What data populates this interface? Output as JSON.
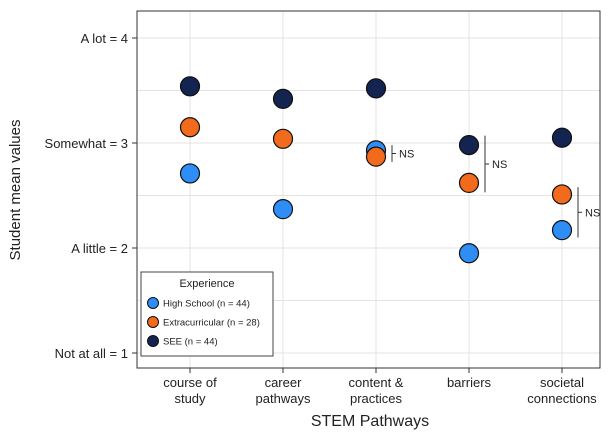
{
  "chart_data": {
    "type": "scatter",
    "xlabel": "STEM Pathways",
    "ylabel": "Student mean values",
    "categories": [
      "course of study",
      "career pathways",
      "content & practices",
      "barriers",
      "societal connections"
    ],
    "category_tick_lines": [
      [
        "course of",
        "study"
      ],
      [
        "career",
        "pathways"
      ],
      [
        "content &",
        "practices"
      ],
      [
        "barriers"
      ],
      [
        "societal",
        "connections"
      ]
    ],
    "ylim": [
      0.85,
      4.25
    ],
    "yticks": [
      {
        "value": 1,
        "label": "Not at all = 1"
      },
      {
        "value": 2,
        "label": "A little = 2"
      },
      {
        "value": 3,
        "label": "Somewhat = 3"
      },
      {
        "value": 4,
        "label": "A lot = 4"
      }
    ],
    "grid": true,
    "legend": {
      "title": "Experience",
      "placement": "bottom-left"
    },
    "series": [
      {
        "name": "High School (n = 44)",
        "color": "#2e8ef5",
        "values": [
          2.71,
          2.37,
          2.93,
          1.95,
          2.17
        ]
      },
      {
        "name": "Extracurricular (n = 28)",
        "color": "#f26a1b",
        "values": [
          3.15,
          3.04,
          2.87,
          2.62,
          2.51
        ]
      },
      {
        "name": "SEE (n = 44)",
        "color": "#12244f",
        "values": [
          3.54,
          3.42,
          3.52,
          2.98,
          3.05
        ]
      }
    ],
    "annotations": [
      {
        "category_index": 2,
        "text": "NS",
        "y_from": 2.82,
        "y_to": 2.98
      },
      {
        "category_index": 3,
        "text": "NS",
        "y_from": 2.53,
        "y_to": 3.07
      },
      {
        "category_index": 4,
        "text": "NS",
        "y_from": 2.1,
        "y_to": 2.58
      }
    ]
  }
}
